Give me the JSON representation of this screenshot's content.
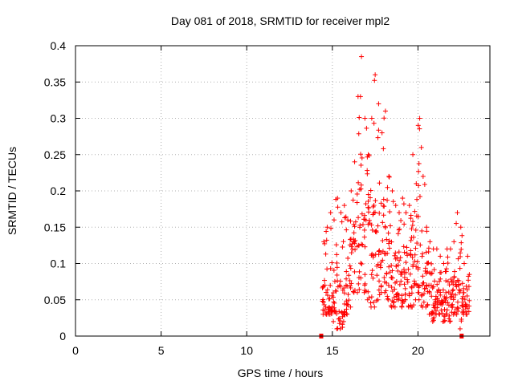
{
  "chart_data": {
    "type": "scatter",
    "title": "Day 081 of 2018, SRMTID for receiver mpl2",
    "xlabel": "GPS time / hours",
    "ylabel": "SRMTID / TECUs",
    "xlim": [
      0,
      24.2
    ],
    "ylim": [
      0,
      0.4
    ],
    "xticks": [
      0,
      5,
      10,
      15,
      20
    ],
    "xtick_labels": [
      "0",
      "5",
      "10",
      "15",
      "20"
    ],
    "yticks": [
      0,
      0.05,
      0.1,
      0.15,
      0.2,
      0.25,
      0.3,
      0.35,
      0.4
    ],
    "ytick_labels": [
      "0",
      "0.05",
      "0.1",
      "0.15",
      "0.2",
      "0.25",
      "0.3",
      "0.35",
      "0.4"
    ],
    "grid": true,
    "marker": "plus",
    "color": "#ff0000",
    "series": [
      {
        "name": "SRMTID",
        "envelope": [
          [
            14.4,
            0.03,
            0.13
          ],
          [
            14.6,
            0.03,
            0.15
          ],
          [
            14.8,
            0.03,
            0.17
          ],
          [
            15.0,
            0.02,
            0.16
          ],
          [
            15.2,
            0.01,
            0.19
          ],
          [
            15.4,
            0.01,
            0.17
          ],
          [
            15.6,
            0.02,
            0.18
          ],
          [
            15.8,
            0.03,
            0.16
          ],
          [
            16.0,
            0.04,
            0.2
          ],
          [
            16.2,
            0.06,
            0.24
          ],
          [
            16.4,
            0.06,
            0.33
          ],
          [
            16.6,
            0.08,
            0.385
          ],
          [
            16.8,
            0.06,
            0.3
          ],
          [
            17.0,
            0.05,
            0.25
          ],
          [
            17.2,
            0.04,
            0.3
          ],
          [
            17.4,
            0.04,
            0.36
          ],
          [
            17.6,
            0.05,
            0.32
          ],
          [
            17.8,
            0.06,
            0.28
          ],
          [
            18.0,
            0.06,
            0.31
          ],
          [
            18.2,
            0.05,
            0.22
          ],
          [
            18.4,
            0.04,
            0.2
          ],
          [
            18.6,
            0.04,
            0.18
          ],
          [
            18.8,
            0.05,
            0.17
          ],
          [
            19.0,
            0.04,
            0.19
          ],
          [
            19.2,
            0.05,
            0.17
          ],
          [
            19.4,
            0.04,
            0.18
          ],
          [
            19.6,
            0.04,
            0.25
          ],
          [
            19.8,
            0.05,
            0.21
          ],
          [
            20.0,
            0.05,
            0.3
          ],
          [
            20.2,
            0.04,
            0.22
          ],
          [
            20.4,
            0.04,
            0.15
          ],
          [
            20.6,
            0.03,
            0.13
          ],
          [
            20.8,
            0.02,
            0.12
          ],
          [
            21.0,
            0.03,
            0.12
          ],
          [
            21.2,
            0.03,
            0.11
          ],
          [
            21.4,
            0.02,
            0.1
          ],
          [
            21.6,
            0.03,
            0.12
          ],
          [
            21.8,
            0.02,
            0.12
          ],
          [
            22.0,
            0.03,
            0.13
          ],
          [
            22.2,
            0.03,
            0.17
          ],
          [
            22.4,
            0.01,
            0.15
          ],
          [
            22.6,
            0.03,
            0.1
          ],
          [
            22.8,
            0.03,
            0.11
          ]
        ],
        "points_per_step": 14,
        "zero_points": [
          [
            14.35,
            0
          ],
          [
            22.55,
            0
          ]
        ]
      }
    ]
  }
}
